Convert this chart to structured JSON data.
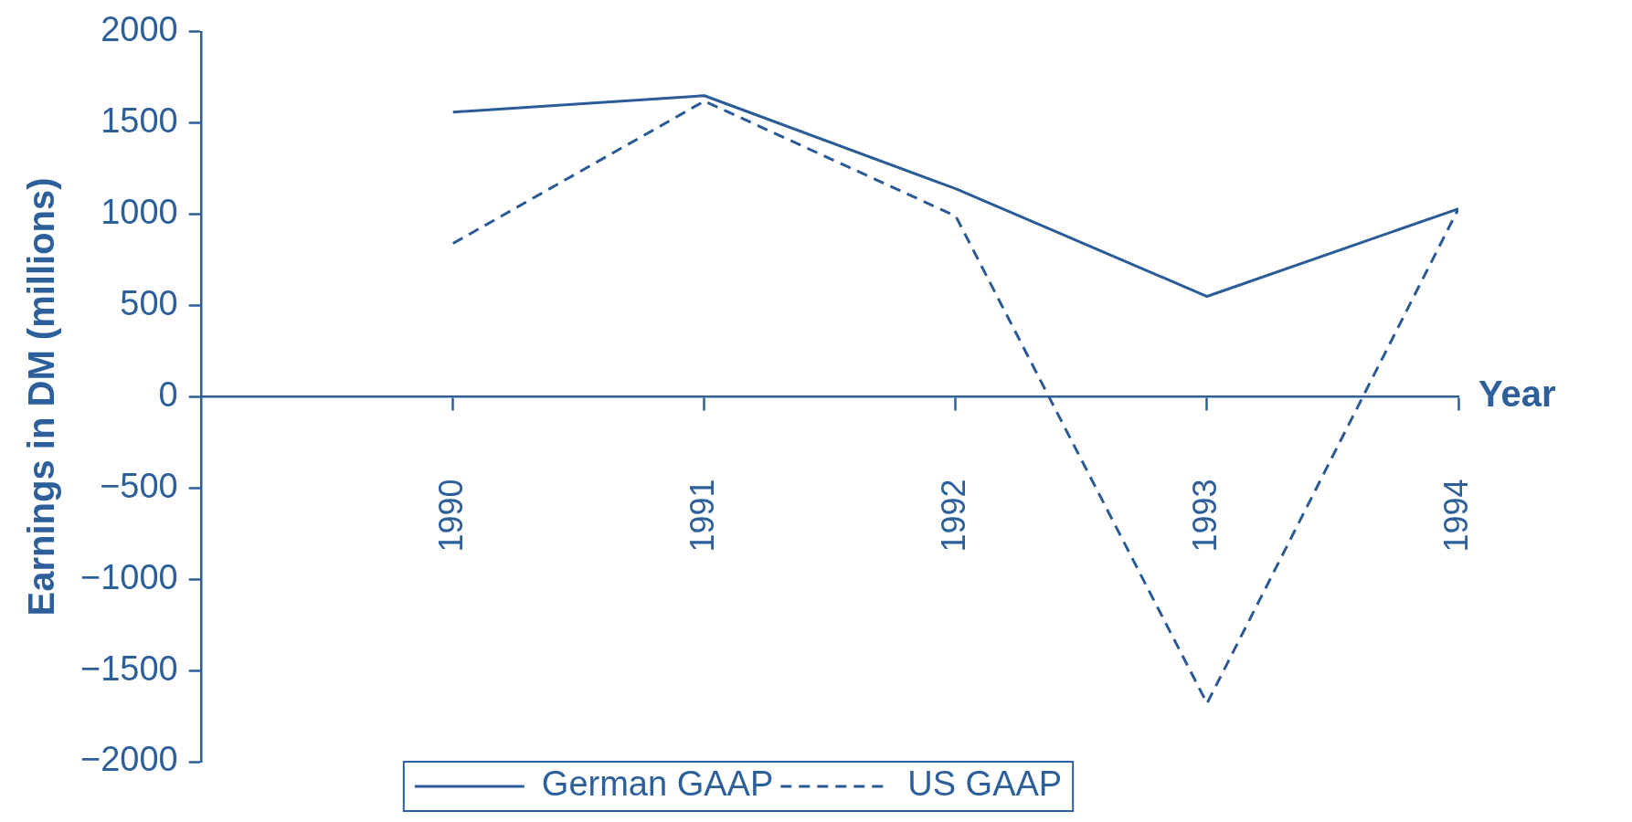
{
  "chart_data": {
    "type": "line",
    "xlabel": "Year",
    "ylabel": "Earnings in DM (millions)",
    "categories": [
      "1990",
      "1991",
      "1992",
      "1993",
      "1994"
    ],
    "series": [
      {
        "name": "German GAAP",
        "color": "#2b5c98",
        "line_style": "solid",
        "values": [
          1560,
          1650,
          1140,
          550,
          1030
        ]
      },
      {
        "name": "US GAAP",
        "color": "#2a5a96",
        "line_style": "dashed",
        "values": [
          840,
          1620,
          990,
          -1680,
          1030
        ]
      }
    ],
    "ylim": [
      -2000,
      2000
    ],
    "yticks": [
      {
        "value": -2000,
        "label": "−2000"
      },
      {
        "value": -1500,
        "label": "−1500"
      },
      {
        "value": -1000,
        "label": "−1000"
      },
      {
        "value": -500,
        "label": "−500"
      },
      0,
      500,
      1000,
      1500,
      2000
    ],
    "grid": false,
    "legend": "bottom",
    "marker": "none"
  }
}
